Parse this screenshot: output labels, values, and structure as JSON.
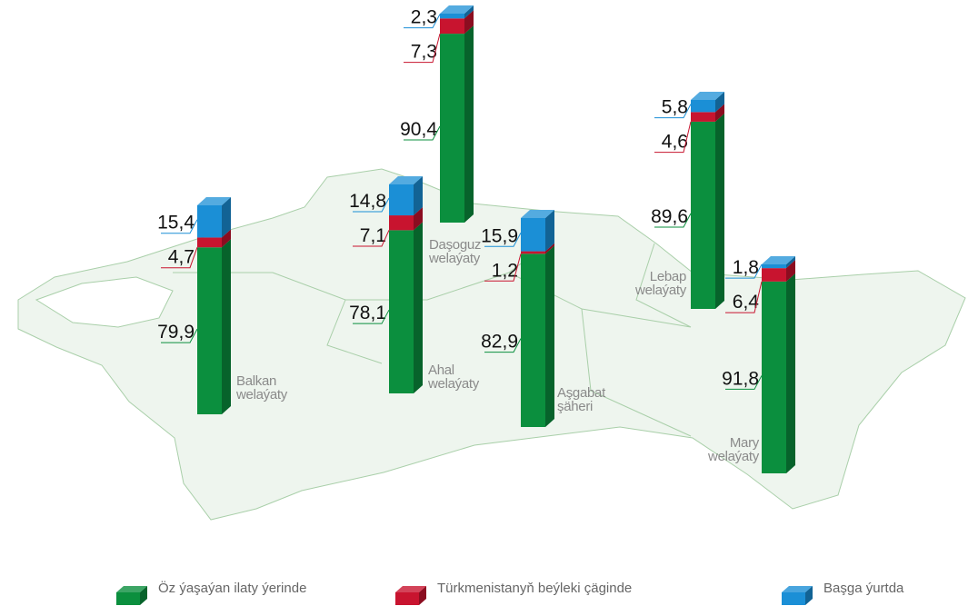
{
  "chart_data": {
    "type": "stacked_bar_map",
    "categories": [
      "Balkan welaýaty",
      "Ahal welaýaty",
      "Daşoguz welaýaty",
      "Aşgabat şäheri",
      "Lebap welaýaty",
      "Mary welaýaty"
    ],
    "series": [
      {
        "name": "Öz ýaşaýan ilaty ýerinde",
        "color": "#0b8f3e",
        "values": [
          79.9,
          78.1,
          90.4,
          82.9,
          89.6,
          91.8
        ],
        "value_labels": [
          "79,9",
          "78,1",
          "90,4",
          "82,9",
          "89,6",
          "91,8"
        ]
      },
      {
        "name": "Türkmenistanyň beýleki çäginde",
        "color": "#c8142f",
        "values": [
          4.7,
          7.1,
          7.3,
          1.2,
          4.6,
          6.4
        ],
        "value_labels": [
          "4,7",
          "7,1",
          "7,3",
          "1,2",
          "4,6",
          "6,4"
        ]
      },
      {
        "name": "Başga ýurtda",
        "color": "#1b8fd6",
        "values": [
          15.4,
          14.8,
          2.3,
          15.9,
          5.8,
          1.8
        ],
        "value_labels": [
          "15,4",
          "14,8",
          "2,3",
          "15,9",
          "5,8",
          "1,8"
        ]
      }
    ]
  }
}
